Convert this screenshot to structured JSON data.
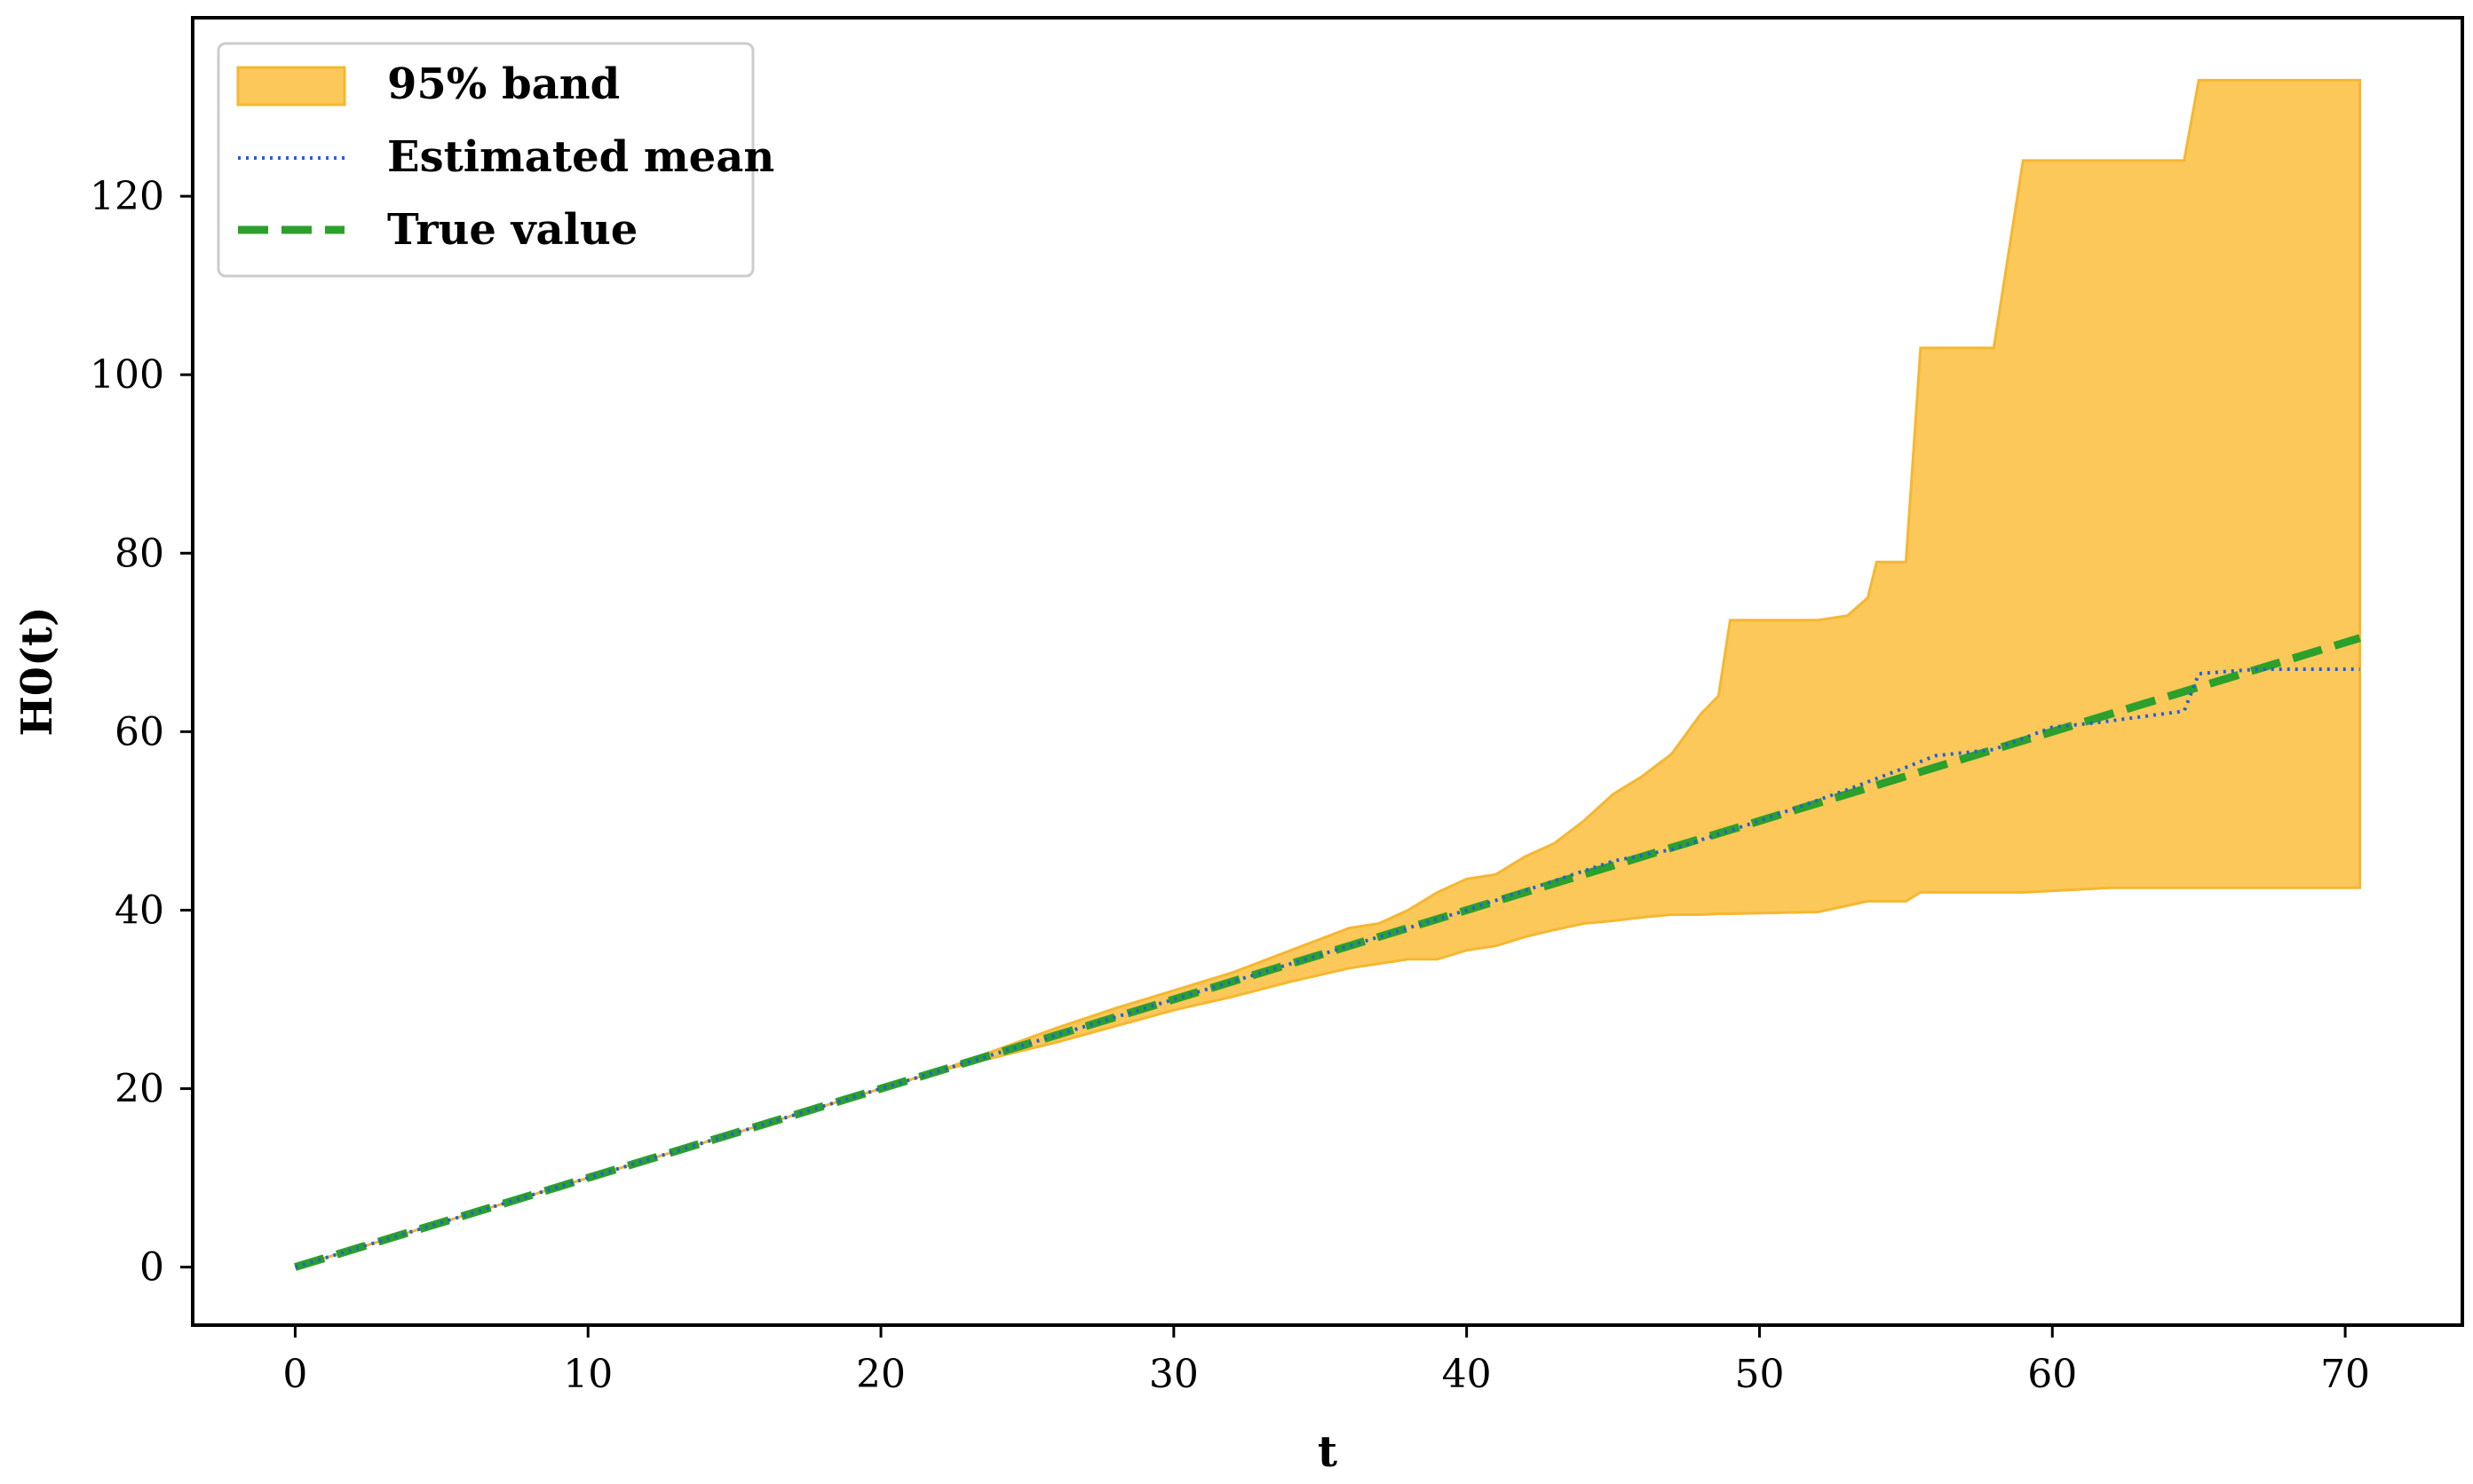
{
  "chart_data": {
    "type": "line",
    "title": "",
    "xlabel": "t",
    "ylabel": "H0(t)",
    "xlim": [
      -3.5,
      74
    ],
    "ylim": [
      -6.5,
      140
    ],
    "xticks": [
      0,
      10,
      20,
      30,
      40,
      50,
      60,
      70
    ],
    "yticks": [
      0,
      20,
      40,
      60,
      80,
      100,
      120
    ],
    "grid": false,
    "legend_position": "top-left",
    "colors": {
      "band_fill": "#fdc85a",
      "band_edge": "#f5b731",
      "mean": "#1f63d6",
      "true": "#2ca02c"
    },
    "series": [
      {
        "name": "95% band",
        "kind": "band",
        "points": [
          [
            0,
            0,
            0
          ],
          [
            10,
            10,
            10
          ],
          [
            20,
            20,
            20
          ],
          [
            22,
            22,
            22
          ],
          [
            24,
            23.6,
            24.4
          ],
          [
            26,
            25.2,
            26.8
          ],
          [
            28,
            27,
            29
          ],
          [
            30,
            28.8,
            31
          ],
          [
            32,
            30.3,
            33
          ],
          [
            34,
            32,
            35.5
          ],
          [
            36,
            33.5,
            38
          ],
          [
            37,
            34,
            38.5
          ],
          [
            38,
            34.5,
            40
          ],
          [
            39,
            34.5,
            42
          ],
          [
            40,
            35.5,
            43.5
          ],
          [
            41,
            36,
            44
          ],
          [
            42,
            37,
            46
          ],
          [
            43,
            37.8,
            47.5
          ],
          [
            44,
            38.5,
            50
          ],
          [
            45,
            38.8,
            53
          ],
          [
            46,
            39.2,
            55
          ],
          [
            47,
            39.5,
            57.5
          ],
          [
            48,
            39.5,
            62
          ],
          [
            48.6,
            39.6,
            64
          ],
          [
            49,
            39.6,
            72.5
          ],
          [
            52,
            39.8,
            72.5
          ],
          [
            53,
            40.5,
            73
          ],
          [
            53.7,
            41,
            75
          ],
          [
            54,
            41,
            79
          ],
          [
            55,
            41,
            79
          ],
          [
            55.5,
            42,
            103
          ],
          [
            58,
            42,
            103
          ],
          [
            59,
            42,
            124
          ],
          [
            62,
            42.5,
            124
          ],
          [
            64.5,
            42.5,
            124
          ],
          [
            65,
            42.5,
            133
          ],
          [
            70.5,
            42.5,
            133
          ]
        ]
      },
      {
        "name": "Estimated mean",
        "kind": "line",
        "points": [
          [
            0,
            0
          ],
          [
            10,
            10
          ],
          [
            20,
            20
          ],
          [
            30,
            30
          ],
          [
            40,
            40
          ],
          [
            45,
            45.5
          ],
          [
            47,
            46.8
          ],
          [
            50,
            50
          ],
          [
            53,
            53.5
          ],
          [
            55,
            56
          ],
          [
            56,
            57.3
          ],
          [
            58,
            58
          ],
          [
            60,
            60.5
          ],
          [
            61.5,
            61
          ],
          [
            64.5,
            62.3
          ],
          [
            65,
            66.5
          ],
          [
            67,
            67
          ],
          [
            70.5,
            67
          ]
        ]
      },
      {
        "name": "True value",
        "kind": "line",
        "points": [
          [
            0,
            0
          ],
          [
            70.5,
            70.5
          ]
        ]
      }
    ]
  }
}
